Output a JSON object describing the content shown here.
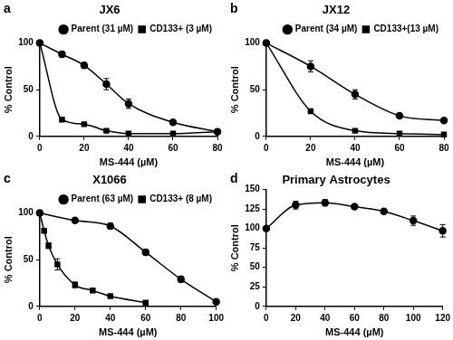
{
  "chart_data": [
    {
      "type": "line",
      "title": "JX6",
      "annotations": [
        "a"
      ],
      "x_label": "MS-444 (µM)",
      "y_label": "% Control",
      "xlim": [
        0,
        80
      ],
      "xticks": [
        0,
        20,
        40,
        60,
        80
      ],
      "ylim": [
        0,
        100
      ],
      "yticks": [
        0,
        50,
        100
      ],
      "grid": false,
      "legend": "upper right",
      "series": [
        {
          "name": "Parent (31 µM)",
          "color": "#000000",
          "marker": "circle",
          "line_style": "solid",
          "x": [
            0,
            10,
            20,
            30,
            40,
            60,
            80
          ],
          "values": [
            100,
            88,
            76,
            56,
            35,
            15,
            5
          ],
          "errors": [
            0,
            3,
            3,
            6,
            5,
            1,
            1
          ]
        },
        {
          "name": "CD133+ (3 µM)",
          "color": "#000000",
          "marker": "square",
          "line_style": "solid",
          "x": [
            0,
            10,
            20,
            30,
            40,
            60,
            80
          ],
          "values": [
            100,
            18,
            13,
            6,
            3,
            3,
            5
          ],
          "errors": [
            0,
            1,
            1,
            1,
            1,
            1,
            1
          ]
        }
      ]
    },
    {
      "type": "line",
      "title": "JX12",
      "annotations": [
        "b"
      ],
      "x_label": "MS-444 (µM)",
      "y_label": "% Control",
      "xlim": [
        0,
        80
      ],
      "xticks": [
        0,
        20,
        40,
        60,
        80
      ],
      "ylim": [
        0,
        100
      ],
      "yticks": [
        0,
        50,
        100
      ],
      "grid": false,
      "legend": "upper right",
      "series": [
        {
          "name": "Parent (34 µM)",
          "color": "#000000",
          "marker": "circle",
          "line_style": "solid",
          "x": [
            0,
            20,
            40,
            60,
            80
          ],
          "values": [
            100,
            75,
            45,
            22,
            17
          ],
          "errors": [
            0,
            6,
            5,
            1,
            1
          ]
        },
        {
          "name": "CD133+(13 µM)",
          "color": "#000000",
          "marker": "square",
          "line_style": "solid",
          "x": [
            0,
            20,
            40,
            60,
            80
          ],
          "values": [
            100,
            27,
            6,
            3,
            2
          ],
          "errors": [
            0,
            1,
            1,
            1,
            1
          ]
        }
      ]
    },
    {
      "type": "line",
      "title": "X1066",
      "annotations": [
        "c"
      ],
      "x_label": "MS-444 (µM)",
      "y_label": "% Control",
      "xlim": [
        0,
        100
      ],
      "xticks": [
        0,
        20,
        40,
        60,
        80,
        100
      ],
      "ylim": [
        0,
        100
      ],
      "yticks": [
        0,
        50,
        100
      ],
      "grid": false,
      "legend": "upper right",
      "series": [
        {
          "name": "Parent (63 µM)",
          "color": "#000000",
          "marker": "circle",
          "line_style": "solid",
          "x": [
            0,
            20,
            40,
            60,
            80,
            100
          ],
          "values": [
            100,
            92,
            86,
            58,
            29,
            5
          ],
          "errors": [
            0,
            1,
            3,
            3,
            3,
            1
          ]
        },
        {
          "name": "CD133+ (8 µM)",
          "color": "#000000",
          "marker": "square",
          "line_style": "solid",
          "x": [
            0,
            2.5,
            5,
            10,
            20,
            30,
            40,
            60
          ],
          "values": [
            100,
            81,
            65,
            45,
            23,
            17,
            11,
            4
          ],
          "errors": [
            0,
            2,
            3,
            6,
            3,
            2,
            1,
            1
          ]
        }
      ]
    },
    {
      "type": "line",
      "title": "Primary Astrocytes",
      "annotations": [
        "d"
      ],
      "x_label": "MS-444 (µM)",
      "y_label": "% Control",
      "xlim": [
        0,
        120
      ],
      "xticks": [
        0,
        20,
        40,
        60,
        80,
        100,
        120
      ],
      "ylim": [
        0,
        150
      ],
      "yticks": [
        0,
        25,
        50,
        75,
        100,
        125,
        150
      ],
      "grid": false,
      "series": [
        {
          "color": "#000000",
          "marker": "circle",
          "line_style": "solid",
          "x": [
            0,
            20,
            40,
            60,
            80,
            100,
            120
          ],
          "values": [
            100,
            130,
            133,
            128,
            122,
            110,
            97
          ],
          "errors": [
            0,
            5,
            4,
            2,
            3,
            6,
            8
          ]
        }
      ]
    }
  ]
}
